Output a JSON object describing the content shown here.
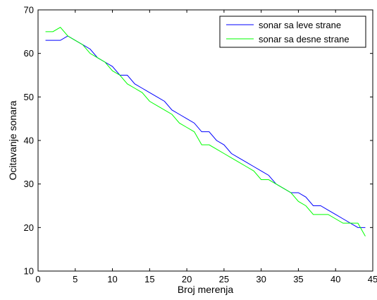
{
  "chart_data": {
    "type": "line",
    "title": "",
    "xlabel": "Broj merenja",
    "ylabel": "Ocitavanje sonara",
    "xlim": [
      0,
      45
    ],
    "ylim": [
      10,
      70
    ],
    "xticks": [
      0,
      5,
      10,
      15,
      20,
      25,
      30,
      35,
      40,
      45
    ],
    "yticks": [
      10,
      20,
      30,
      40,
      50,
      60,
      70
    ],
    "grid": false,
    "legend_position": "top-right",
    "series": [
      {
        "name": "sonar sa leve strane",
        "color": "#0000ff",
        "x": [
          1,
          2,
          3,
          4,
          5,
          6,
          7,
          8,
          9,
          10,
          11,
          12,
          13,
          14,
          15,
          16,
          17,
          18,
          19,
          20,
          21,
          22,
          23,
          24,
          25,
          26,
          27,
          28,
          29,
          30,
          31,
          32,
          33,
          34,
          35,
          36,
          37,
          38,
          39,
          40,
          41,
          42,
          43,
          44
        ],
        "y": [
          63,
          63,
          63,
          64,
          63,
          62,
          61,
          59,
          58,
          57,
          55,
          55,
          53,
          52,
          51,
          50,
          49,
          47,
          46,
          45,
          44,
          42,
          42,
          40,
          39,
          37,
          36,
          35,
          34,
          33,
          32,
          30,
          29,
          28,
          28,
          27,
          25,
          25,
          24,
          23,
          22,
          21,
          20,
          20
        ]
      },
      {
        "name": "sonar sa desne strane",
        "color": "#00ff00",
        "x": [
          1,
          2,
          3,
          4,
          5,
          6,
          7,
          8,
          9,
          10,
          11,
          12,
          13,
          14,
          15,
          16,
          17,
          18,
          19,
          20,
          21,
          22,
          23,
          24,
          25,
          26,
          27,
          28,
          29,
          30,
          31,
          32,
          33,
          34,
          35,
          36,
          37,
          38,
          39,
          40,
          41,
          42,
          43,
          44
        ],
        "y": [
          65,
          65,
          66,
          64,
          63,
          62,
          60,
          59,
          58,
          56,
          55,
          53,
          52,
          51,
          49,
          48,
          47,
          46,
          44,
          43,
          42,
          39,
          39,
          38,
          37,
          36,
          35,
          34,
          33,
          31,
          31,
          30,
          29,
          28,
          26,
          25,
          23,
          23,
          23,
          22,
          21,
          21,
          21,
          18
        ]
      }
    ]
  }
}
